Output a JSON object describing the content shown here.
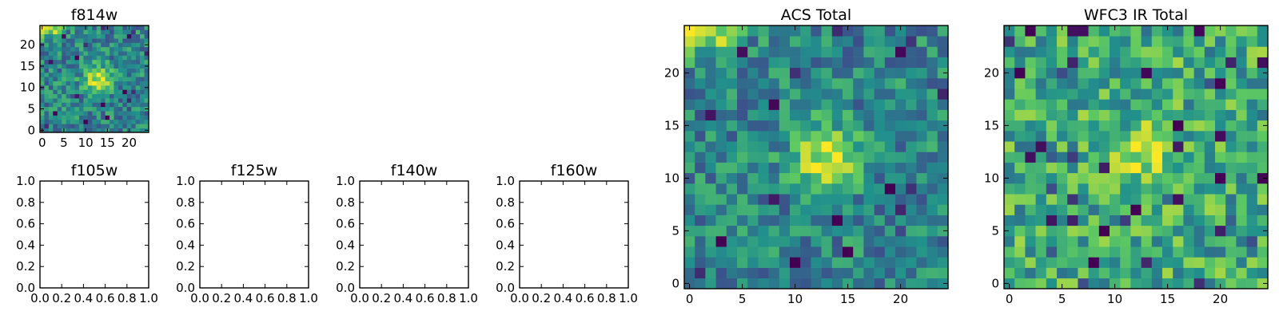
{
  "figure": {
    "colormap": "viridis",
    "colormap_stops": [
      "#440154",
      "#3b528b",
      "#21918c",
      "#5ec962",
      "#fde725"
    ]
  },
  "chart_data": [
    {
      "id": "f814w",
      "type": "heatmap",
      "title": "f814w",
      "grid_size": [
        25,
        25
      ],
      "xlim": [
        -0.5,
        24.5
      ],
      "ylim": [
        -0.5,
        24.5
      ],
      "xticks": [
        0,
        5,
        10,
        15,
        20
      ],
      "yticks": [
        0,
        5,
        10,
        15,
        20
      ],
      "source_peak": [
        13,
        12
      ],
      "bright_corner": "top-left",
      "shares_data_with": "acs-total"
    },
    {
      "id": "f105w",
      "type": "empty",
      "title": "f105w",
      "xlim": [
        0,
        1
      ],
      "ylim": [
        0,
        1
      ],
      "xticks": [
        "0.0",
        "0.2",
        "0.4",
        "0.6",
        "0.8",
        "1.0"
      ],
      "yticks": [
        "0.0",
        "0.2",
        "0.4",
        "0.6",
        "0.8",
        "1.0"
      ]
    },
    {
      "id": "f125w",
      "type": "empty",
      "title": "f125w",
      "xlim": [
        0,
        1
      ],
      "ylim": [
        0,
        1
      ],
      "xticks": [
        "0.0",
        "0.2",
        "0.4",
        "0.6",
        "0.8",
        "1.0"
      ],
      "yticks": [
        "0.0",
        "0.2",
        "0.4",
        "0.6",
        "0.8",
        "1.0"
      ]
    },
    {
      "id": "f140w",
      "type": "empty",
      "title": "f140w",
      "xlim": [
        0,
        1
      ],
      "ylim": [
        0,
        1
      ],
      "xticks": [
        "0.0",
        "0.2",
        "0.4",
        "0.6",
        "0.8",
        "1.0"
      ],
      "yticks": [
        "0.0",
        "0.2",
        "0.4",
        "0.6",
        "0.8",
        "1.0"
      ]
    },
    {
      "id": "f160w",
      "type": "empty",
      "title": "f160w",
      "xlim": [
        0,
        1
      ],
      "ylim": [
        0,
        1
      ],
      "xticks": [
        "0.0",
        "0.2",
        "0.4",
        "0.6",
        "0.8",
        "1.0"
      ],
      "yticks": [
        "0.0",
        "0.2",
        "0.4",
        "0.6",
        "0.8",
        "1.0"
      ]
    },
    {
      "id": "acs-total",
      "type": "heatmap",
      "title": "ACS Total",
      "grid_size": [
        25,
        25
      ],
      "xlim": [
        -0.5,
        24.5
      ],
      "ylim": [
        -0.5,
        24.5
      ],
      "xticks": [
        0,
        5,
        10,
        15,
        20
      ],
      "yticks": [
        0,
        5,
        10,
        15,
        20
      ],
      "source_peak": [
        13,
        12
      ],
      "bright_corner": "top-left"
    },
    {
      "id": "wfc3-ir-total",
      "type": "heatmap",
      "title": "WFC3 IR Total",
      "grid_size": [
        25,
        25
      ],
      "xlim": [
        -0.5,
        24.5
      ],
      "ylim": [
        -0.5,
        24.5
      ],
      "xticks": [
        0,
        5,
        10,
        15,
        20
      ],
      "yticks": [
        0,
        5,
        10,
        15,
        20
      ],
      "source_peak": [
        12,
        12
      ]
    }
  ]
}
